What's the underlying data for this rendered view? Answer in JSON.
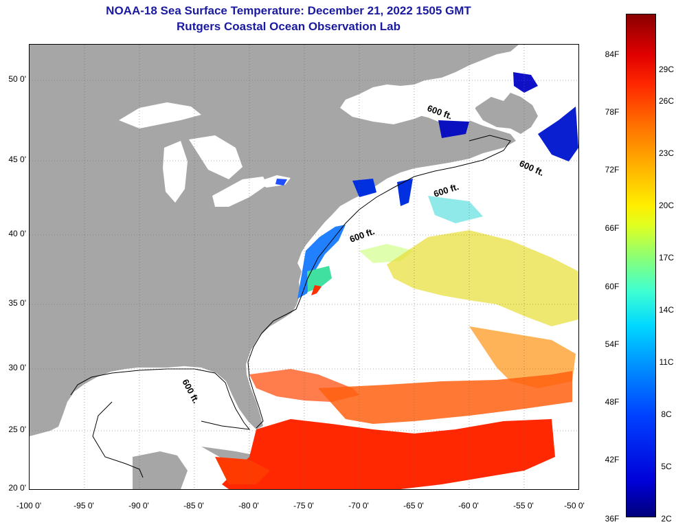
{
  "header": {
    "title": "NOAA-18 Sea Surface Temperature:  December 21, 2022 1505 GMT",
    "subtitle": "Rutgers Coastal Ocean Observation Lab"
  },
  "map": {
    "lat_labels": [
      "50 0'",
      "45 0'",
      "40 0'",
      "35 0'",
      "30 0'",
      "25 0'",
      "20 0'"
    ],
    "lon_labels": [
      "-100 0'",
      "-95 0'",
      "-90 0'",
      "-85 0'",
      "-80 0'",
      "-75 0'",
      "-70 0'",
      "-65 0'",
      "-60 0'",
      "-55 0'",
      "-50 0'"
    ],
    "isobath_label": "600 ft.",
    "colors": {
      "land": "#a6a6a6",
      "ocean_no_data": "#ffffff",
      "warm": "#ff3000",
      "cold": "#0020d0"
    }
  },
  "legend": {
    "fahrenheit": [
      "84F",
      "78F",
      "72F",
      "66F",
      "60F",
      "54F",
      "48F",
      "42F",
      "36F"
    ],
    "celsius": [
      "29C",
      "26C",
      "23C",
      "20C",
      "17C",
      "14C",
      "11C",
      "8C",
      "5C",
      "2C"
    ]
  }
}
